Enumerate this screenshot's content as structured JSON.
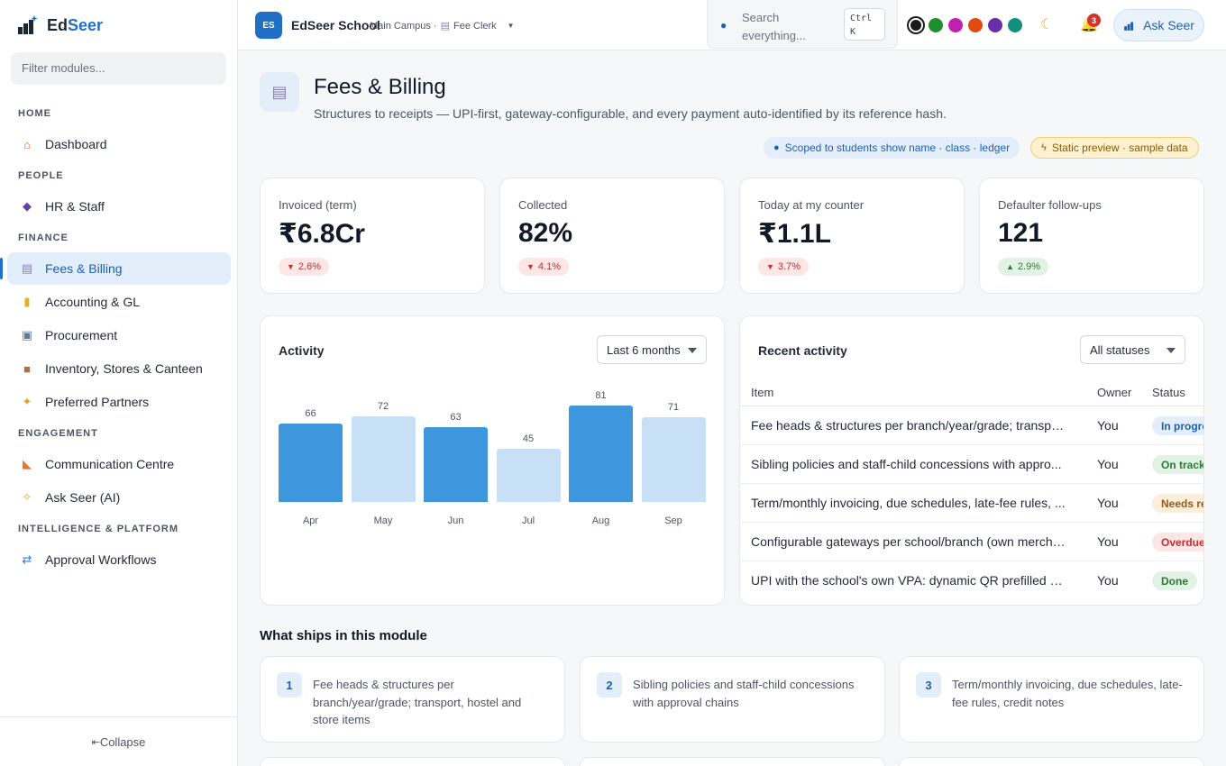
{
  "brand": {
    "name_a": "Ed",
    "name_b": "Seer"
  },
  "sidebar": {
    "filter_placeholder": "Filter modules...",
    "sections": [
      {
        "title": "HOME",
        "items": [
          {
            "label": "Dashboard",
            "icon": "house-icon"
          }
        ]
      },
      {
        "title": "PEOPLE",
        "items": [
          {
            "label": "HR & Staff",
            "icon": "people-icon"
          }
        ]
      },
      {
        "title": "FINANCE",
        "items": [
          {
            "label": "Fees & Billing",
            "icon": "receipt-icon",
            "active": true
          },
          {
            "label": "Accounting & GL",
            "icon": "ledger-icon"
          },
          {
            "label": "Procurement",
            "icon": "cart-icon"
          },
          {
            "label": "Inventory, Stores & Canteen",
            "icon": "box-icon"
          },
          {
            "label": "Preferred Partners",
            "icon": "handshake-icon"
          }
        ]
      },
      {
        "title": "ENGAGEMENT",
        "items": [
          {
            "label": "Communication Centre",
            "icon": "megaphone-icon"
          },
          {
            "label": "Ask Seer (AI)",
            "icon": "sparkles-icon"
          }
        ]
      },
      {
        "title": "INTELLIGENCE & PLATFORM",
        "items": [
          {
            "label": "Approval Workflows",
            "icon": "shuffle-icon"
          }
        ]
      }
    ],
    "collapse_label": "Collapse"
  },
  "topbar": {
    "school_initials": "ES",
    "school_name": "EdSeer School",
    "campus": "Main Campus ·",
    "role": "Fee Clerk",
    "search_label": "Search everything...",
    "search_kbd": "Ctrl K",
    "theme_colors": [
      "#1a1a1a",
      "#1e8e2e",
      "#c21fb0",
      "#e24a12",
      "#6a2fa8",
      "#12907d"
    ],
    "notifications_count": "3",
    "ask_label": "Ask Seer"
  },
  "page": {
    "title": "Fees & Billing",
    "subtitle": "Structures to receipts — UPI-first, gateway-configurable, and every payment auto-identified by its reference hash.",
    "scope_pill": "Scoped to students show name · class · ledger",
    "preview_pill": "Static preview · sample data"
  },
  "kpis": [
    {
      "label": "Invoiced (term)",
      "value": "₹6.8Cr",
      "delta": "2.6%",
      "dir": "down"
    },
    {
      "label": "Collected",
      "value": "82%",
      "delta": "4.1%",
      "dir": "down"
    },
    {
      "label": "Today at my counter",
      "value": "₹1.1L",
      "delta": "3.7%",
      "dir": "down"
    },
    {
      "label": "Defaulter follow-ups",
      "value": "121",
      "delta": "2.9%",
      "dir": "up"
    }
  ],
  "activity": {
    "title": "Activity",
    "range": "Last 6 months",
    "colors": {
      "dark": "#3e97dd",
      "light": "#c7e0f6"
    }
  },
  "chart_data": {
    "type": "bar",
    "categories": [
      "Apr",
      "May",
      "Jun",
      "Jul",
      "Aug",
      "Sep"
    ],
    "values": [
      66,
      72,
      63,
      45,
      81,
      71
    ],
    "ylim": [
      0,
      81
    ]
  },
  "recent": {
    "title": "Recent activity",
    "filter": "All statuses",
    "columns": [
      "Item",
      "Owner",
      "Status"
    ],
    "rows": [
      {
        "item": "Fee heads & structures per branch/year/grade; transport...",
        "owner": "You",
        "status": "In progress",
        "tone": "blue"
      },
      {
        "item": "Sibling policies and staff-child concessions with appro...",
        "owner": "You",
        "status": "On track",
        "tone": "green"
      },
      {
        "item": "Term/monthly invoicing, due schedules, late-fee rules, ...",
        "owner": "You",
        "status": "Needs review",
        "tone": "amber"
      },
      {
        "item": "Configurable gateways per school/branch (own merchant c...",
        "owner": "You",
        "status": "Overdue",
        "tone": "red"
      },
      {
        "item": "UPI with the school's own VPA: dynamic QR prefilled wit...",
        "owner": "You",
        "status": "Done",
        "tone": "green"
      }
    ]
  },
  "ships": {
    "title": "What ships in this module",
    "items": [
      {
        "num": "1",
        "text": "Fee heads & structures per branch/year/grade; transport, hostel and store items"
      },
      {
        "num": "2",
        "text": "Sibling policies and staff-child concessions with approval chains"
      },
      {
        "num": "3",
        "text": "Term/monthly invoicing, due schedules, late-fee rules, credit notes"
      }
    ]
  }
}
